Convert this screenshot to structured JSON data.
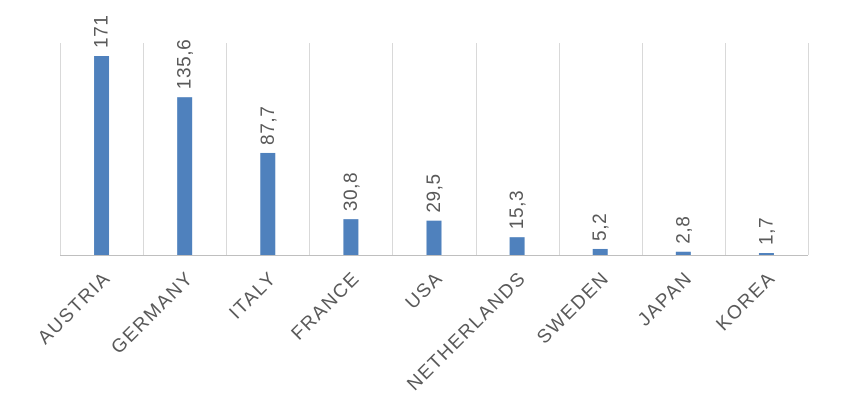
{
  "chart_data": {
    "type": "bar",
    "categories": [
      "AUSTRIA",
      "GERMANY",
      "ITALY",
      "FRANCE",
      "USA",
      "NETHERLANDS",
      "SWEDEN",
      "JAPAN",
      "KOREA"
    ],
    "values": [
      171,
      135.6,
      87.7,
      30.8,
      29.5,
      15.3,
      5.2,
      2.8,
      1.7
    ],
    "data_labels": [
      "171",
      "135,6",
      "87,7",
      "30,8",
      "29,5",
      "15,3",
      "5,2",
      "2,8",
      "1,7"
    ],
    "title": "",
    "xlabel": "",
    "ylabel": "",
    "ylim": [
      0,
      180
    ],
    "grid": "vertical category separators",
    "legend": "none",
    "colors": {
      "bar": "#4f81bd",
      "label_text": "#595959",
      "grid": "#d9d9d9",
      "axis": "#bfbfbf"
    }
  }
}
